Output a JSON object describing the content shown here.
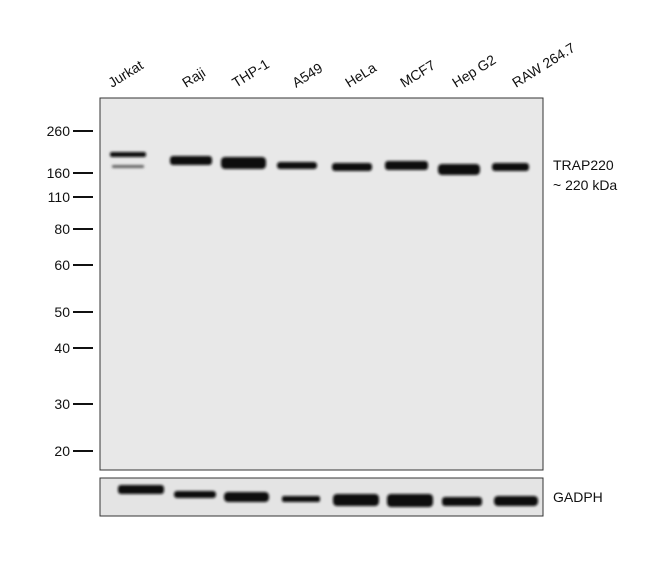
{
  "lanes": [
    "Jurkat",
    "Raji",
    "THP-1",
    "A549",
    "HeLa",
    "MCF7",
    "Hep G2",
    "RAW 264.7"
  ],
  "markers": [
    "260",
    "160",
    "110",
    "80",
    "60",
    "50",
    "40",
    "30",
    "20"
  ],
  "target": {
    "name": "TRAP220",
    "size": "~ 220 kDa"
  },
  "loading_control": "GADPH"
}
